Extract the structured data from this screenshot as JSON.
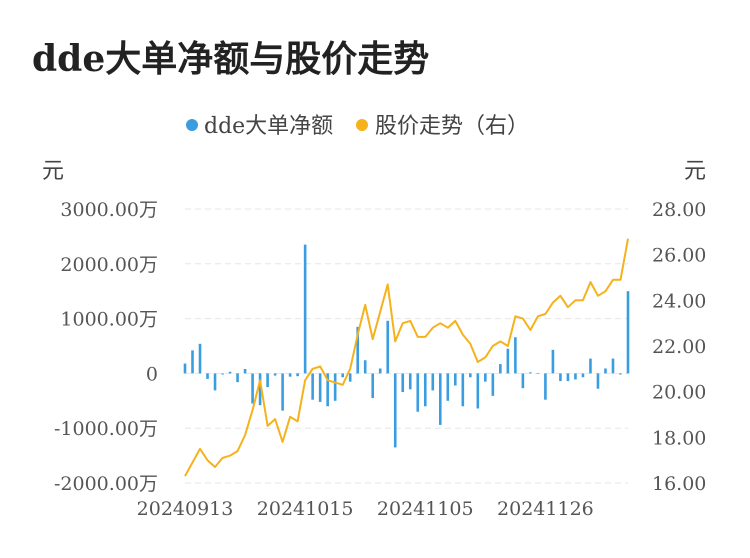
{
  "title": "dde大单净额与股价走势",
  "chart_data": {
    "type": "bar+line",
    "title": "dde大单净额与股价走势",
    "legend": {
      "placement": "top-center",
      "entries": [
        "dde大单净额",
        "股价走势（右）"
      ]
    },
    "left_axis": {
      "unit": "元",
      "ticks": [
        "3000.00万",
        "2000.00万",
        "1000.00万",
        "0",
        "-1000.00万",
        "-2000.00万"
      ],
      "range": [
        -2000,
        3000
      ]
    },
    "right_axis": {
      "unit": "元",
      "ticks": [
        "28.00",
        "26.00",
        "24.00",
        "22.00",
        "20.00",
        "18.00",
        "16.00"
      ],
      "range": [
        16,
        28
      ]
    },
    "x_tick_labels": [
      "20240913",
      "20241015",
      "20241105",
      "20241126"
    ],
    "x_tick_indices": [
      0,
      16,
      32,
      48
    ],
    "grid": true,
    "colors": {
      "bar": "#3a9de0",
      "line": "#f5b21c"
    },
    "series": [
      {
        "name": "dde大单净额",
        "type": "bar",
        "values": [
          180,
          420,
          540,
          -100,
          -310,
          -20,
          30,
          -160,
          80,
          -550,
          -580,
          -250,
          -40,
          -680,
          -60,
          -50,
          2350,
          -480,
          -520,
          -600,
          -500,
          -70,
          -150,
          850,
          240,
          -450,
          90,
          960,
          -1350,
          -340,
          -290,
          -700,
          -600,
          -310,
          -940,
          -500,
          -220,
          -600,
          -70,
          -640,
          -150,
          -410,
          170,
          450,
          660,
          -270,
          20,
          -10,
          -480,
          430,
          -140,
          -140,
          -110,
          -70,
          270,
          -280,
          90,
          270,
          -20,
          1500
        ]
      },
      {
        "name": "股价走势（右）",
        "type": "line",
        "axis": "right",
        "values": [
          16.3,
          16.9,
          17.5,
          17.0,
          16.7,
          17.1,
          17.2,
          17.4,
          18.1,
          19.2,
          20.5,
          18.5,
          18.8,
          17.8,
          18.9,
          18.7,
          20.5,
          21.0,
          21.1,
          20.5,
          20.4,
          20.3,
          21.0,
          22.5,
          23.8,
          22.3,
          23.5,
          24.7,
          22.2,
          23.0,
          23.1,
          22.4,
          22.4,
          22.8,
          23.0,
          22.8,
          23.1,
          22.5,
          22.1,
          21.3,
          21.5,
          22.0,
          22.2,
          22.0,
          23.3,
          23.2,
          22.7,
          23.3,
          23.4,
          23.9,
          24.2,
          23.7,
          24.0,
          24.0,
          24.8,
          24.2,
          24.4,
          24.9,
          24.9,
          26.7
        ]
      }
    ]
  }
}
